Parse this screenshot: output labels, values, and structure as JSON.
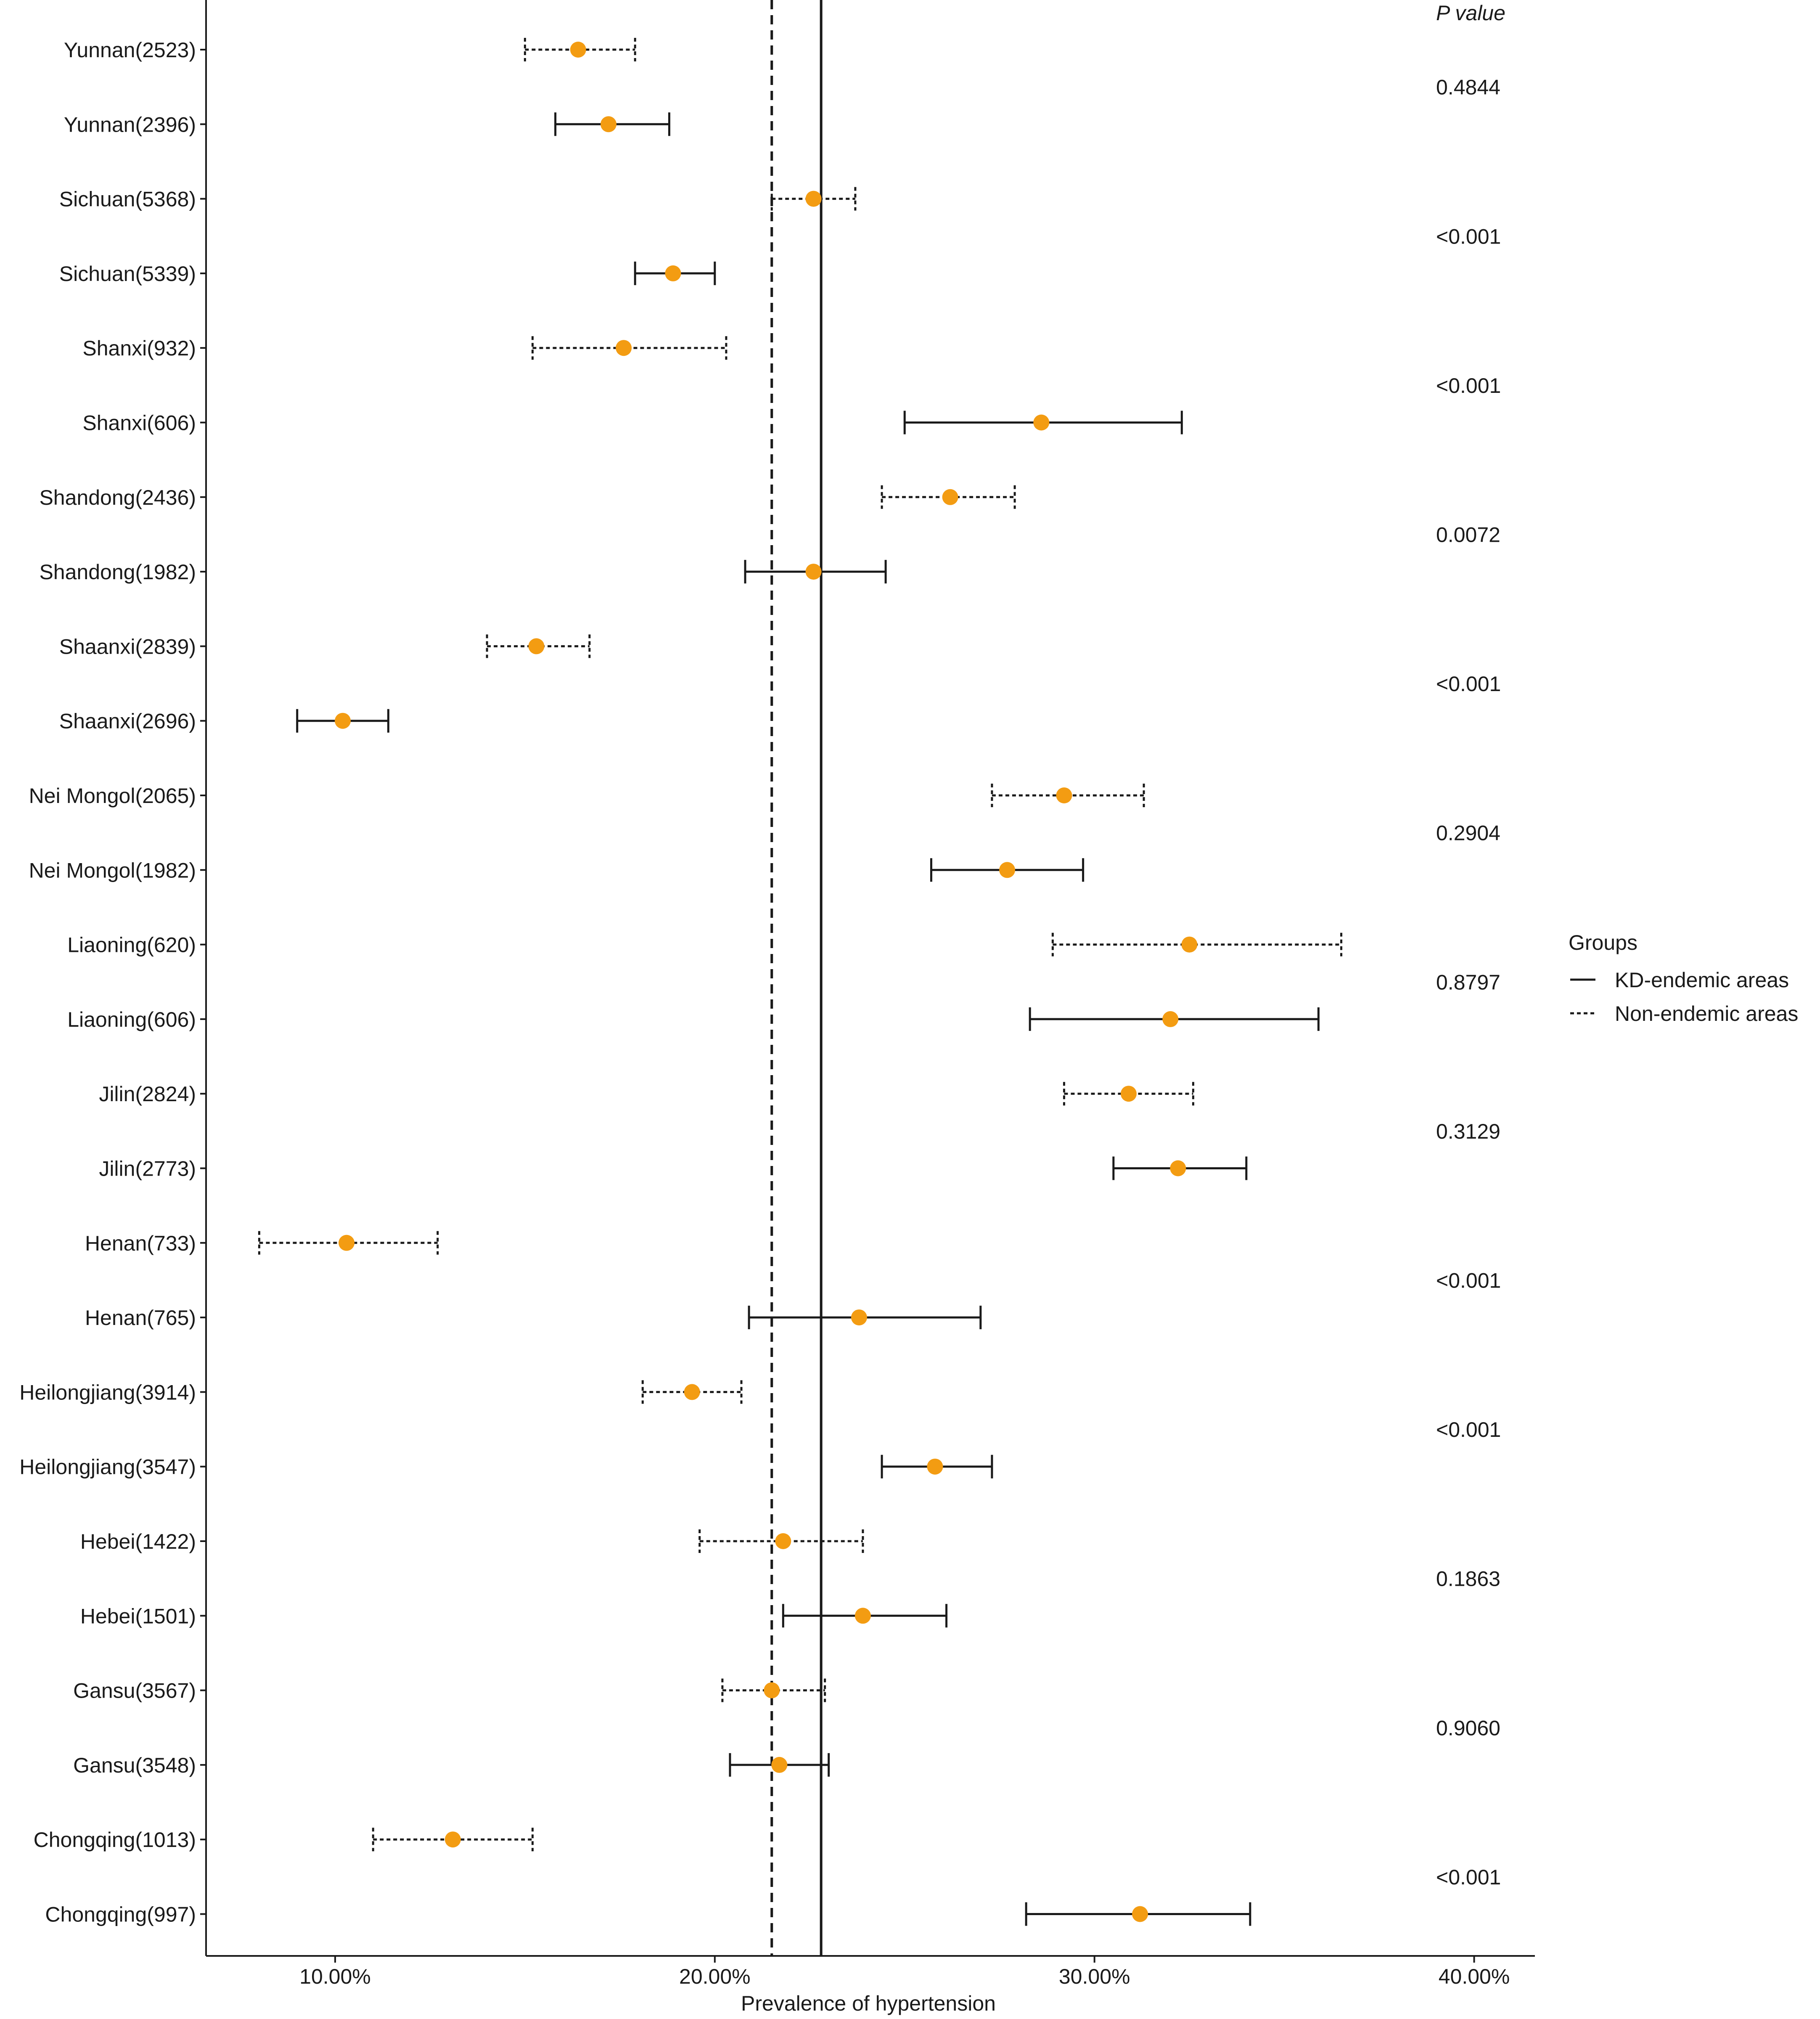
{
  "chart_data": {
    "type": "forest",
    "xlabel": "Prevalence of hypertension",
    "xlim": [
      6.6,
      41.6
    ],
    "xticks": [
      10,
      20,
      30,
      40
    ],
    "xtick_labels": [
      "10.00%",
      "20.00%",
      "30.00%",
      "40.00%"
    ],
    "p_value_header": "P value",
    "reference_lines": [
      {
        "group": "KD-endemic areas",
        "value": 22.8
      },
      {
        "group": "Non-endemic areas",
        "value": 21.5
      }
    ],
    "rows": [
      {
        "label": "Yunnan(2523)",
        "group": "Non-endemic areas",
        "estimate": 16.4,
        "lower": 15.0,
        "upper": 17.9
      },
      {
        "label": "Yunnan(2396)",
        "group": "KD-endemic areas",
        "estimate": 17.2,
        "lower": 15.8,
        "upper": 18.8
      },
      {
        "label": "Sichuan(5368)",
        "group": "Non-endemic areas",
        "estimate": 22.6,
        "lower": 21.5,
        "upper": 23.7
      },
      {
        "label": "Sichuan(5339)",
        "group": "KD-endemic areas",
        "estimate": 18.9,
        "lower": 17.9,
        "upper": 20.0
      },
      {
        "label": "Shanxi(932)",
        "group": "Non-endemic areas",
        "estimate": 17.6,
        "lower": 15.2,
        "upper": 20.3
      },
      {
        "label": "Shanxi(606)",
        "group": "KD-endemic areas",
        "estimate": 28.6,
        "lower": 25.0,
        "upper": 32.3
      },
      {
        "label": "Shandong(2436)",
        "group": "Non-endemic areas",
        "estimate": 26.2,
        "lower": 24.4,
        "upper": 27.9
      },
      {
        "label": "Shandong(1982)",
        "group": "KD-endemic areas",
        "estimate": 22.6,
        "lower": 20.8,
        "upper": 24.5
      },
      {
        "label": "Shaanxi(2839)",
        "group": "Non-endemic areas",
        "estimate": 15.3,
        "lower": 14.0,
        "upper": 16.7
      },
      {
        "label": "Shaanxi(2696)",
        "group": "KD-endemic areas",
        "estimate": 10.2,
        "lower": 9.0,
        "upper": 11.4
      },
      {
        "label": "Nei Mongol(2065)",
        "group": "Non-endemic areas",
        "estimate": 29.2,
        "lower": 27.3,
        "upper": 31.3
      },
      {
        "label": "Nei Mongol(1982)",
        "group": "KD-endemic areas",
        "estimate": 27.7,
        "lower": 25.7,
        "upper": 29.7
      },
      {
        "label": "Liaoning(620)",
        "group": "Non-endemic areas",
        "estimate": 32.5,
        "lower": 28.9,
        "upper": 36.5
      },
      {
        "label": "Liaoning(606)",
        "group": "KD-endemic areas",
        "estimate": 32.0,
        "lower": 28.3,
        "upper": 35.9
      },
      {
        "label": "Jilin(2824)",
        "group": "Non-endemic areas",
        "estimate": 30.9,
        "lower": 29.2,
        "upper": 32.6
      },
      {
        "label": "Jilin(2773)",
        "group": "KD-endemic areas",
        "estimate": 32.2,
        "lower": 30.5,
        "upper": 34.0
      },
      {
        "label": "Henan(733)",
        "group": "Non-endemic areas",
        "estimate": 10.3,
        "lower": 8.0,
        "upper": 12.7
      },
      {
        "label": "Henan(765)",
        "group": "KD-endemic areas",
        "estimate": 23.8,
        "lower": 20.9,
        "upper": 27.0
      },
      {
        "label": "Heilongjiang(3914)",
        "group": "Non-endemic areas",
        "estimate": 19.4,
        "lower": 18.1,
        "upper": 20.7
      },
      {
        "label": "Heilongjiang(3547)",
        "group": "KD-endemic areas",
        "estimate": 25.8,
        "lower": 24.4,
        "upper": 27.3
      },
      {
        "label": "Hebei(1422)",
        "group": "Non-endemic areas",
        "estimate": 21.8,
        "lower": 19.6,
        "upper": 23.9
      },
      {
        "label": "Hebei(1501)",
        "group": "KD-endemic areas",
        "estimate": 23.9,
        "lower": 21.8,
        "upper": 26.1
      },
      {
        "label": "Gansu(3567)",
        "group": "Non-endemic areas",
        "estimate": 21.5,
        "lower": 20.2,
        "upper": 22.9
      },
      {
        "label": "Gansu(3548)",
        "group": "KD-endemic areas",
        "estimate": 21.7,
        "lower": 20.4,
        "upper": 23.0
      },
      {
        "label": "Chongqing(1013)",
        "group": "Non-endemic areas",
        "estimate": 13.1,
        "lower": 11.0,
        "upper": 15.2
      },
      {
        "label": "Chongqing(997)",
        "group": "KD-endemic areas",
        "estimate": 31.2,
        "lower": 28.2,
        "upper": 34.1
      }
    ],
    "p_values": [
      "0.4844",
      "<0.001",
      "<0.001",
      "0.0072",
      "<0.001",
      "0.2904",
      "0.8797",
      "0.3129",
      "<0.001",
      "<0.001",
      "0.1863",
      "0.9060",
      "<0.001"
    ],
    "legend": {
      "title": "Groups",
      "placement": "right",
      "items": [
        {
          "label": "KD-endemic areas",
          "linestyle": "solid"
        },
        {
          "label": "Non-endemic areas",
          "linestyle": "dotted"
        }
      ]
    },
    "colors": {
      "point": "#f39c12",
      "line": "#1a1a1a",
      "axis": "#1a1a1a"
    }
  }
}
